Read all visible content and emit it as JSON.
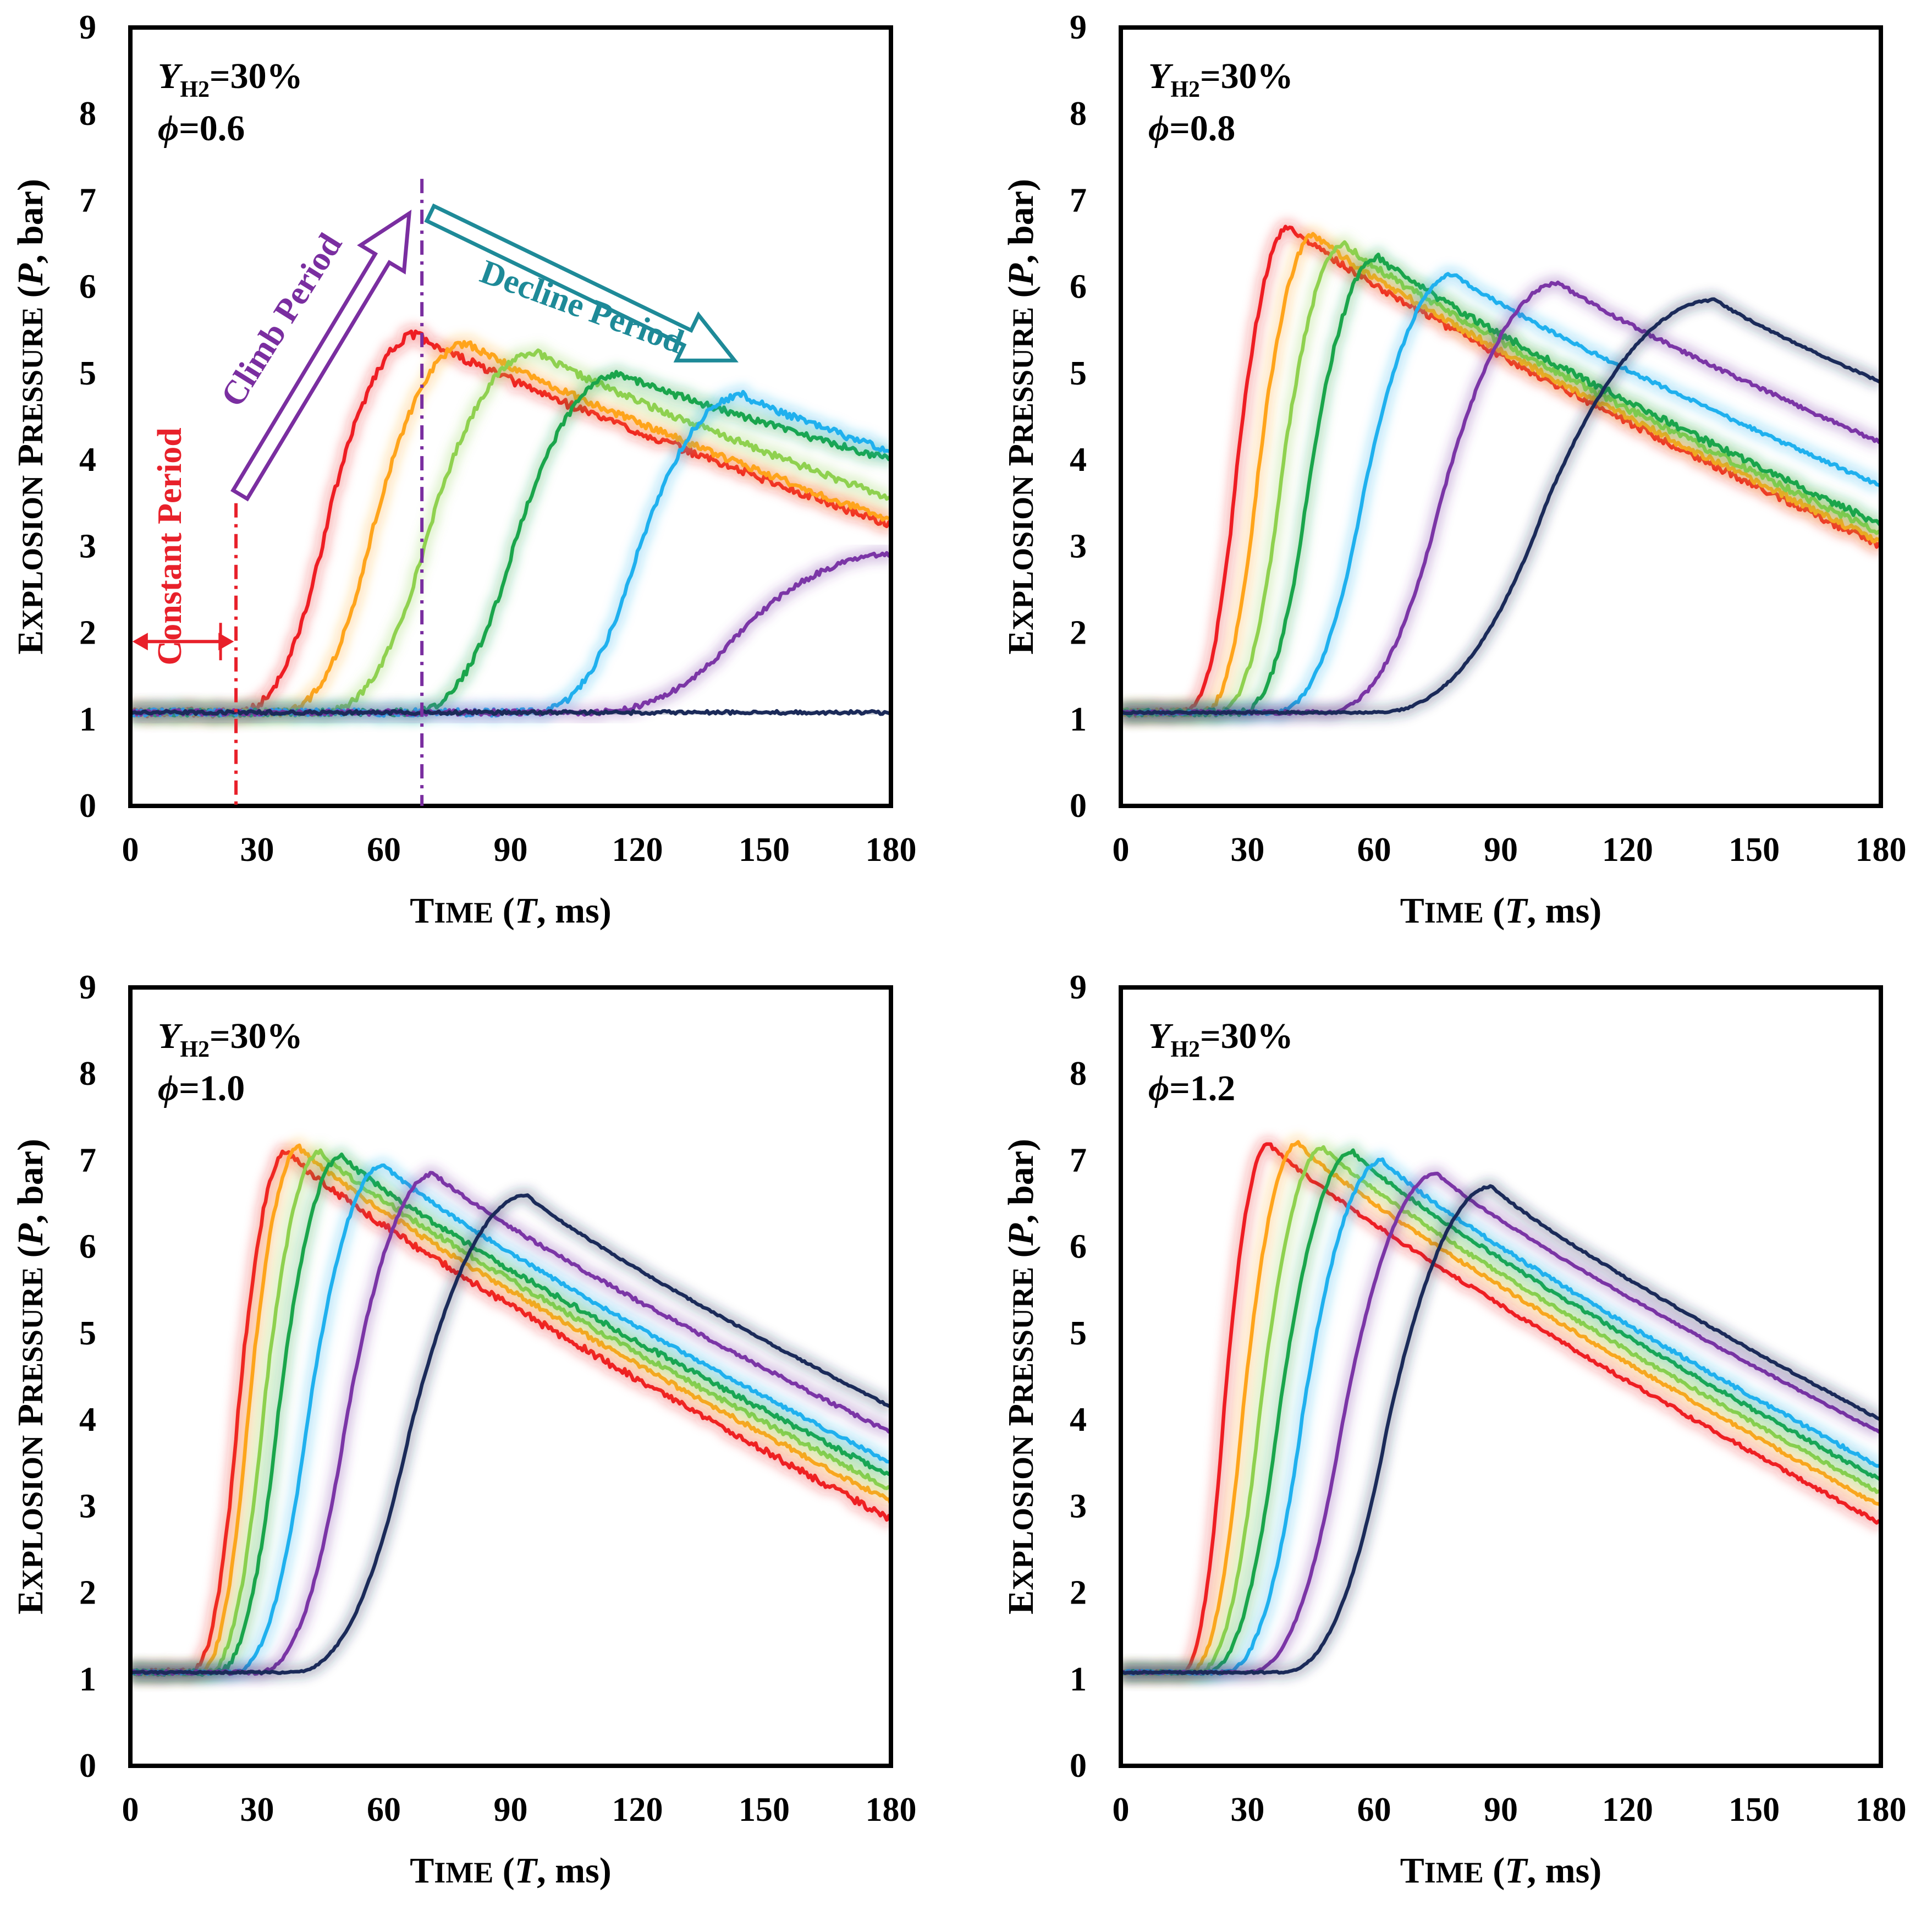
{
  "chart_data": [
    {
      "type": "line",
      "panel_label": "top-left",
      "annotation_y": "Y",
      "annotation_sub": "H2",
      "annotation_y_value": "=30%",
      "annotation_phi": "ϕ",
      "annotation_phi_value": "=0.6",
      "xlabel": "Time (t, ms)",
      "ylabel": "Explosion Pressure (P, bar)",
      "xlim": [
        0,
        180
      ],
      "ylim": [
        0,
        9
      ],
      "xticks": [
        0,
        30,
        60,
        90,
        120,
        150,
        180
      ],
      "yticks": [
        0,
        1,
        2,
        3,
        4,
        5,
        6,
        7,
        8,
        9
      ],
      "period_labels": {
        "constant": "Constant Period",
        "climb": "Climb Period",
        "decline": "Decline Period"
      },
      "period_colors": {
        "constant": "#e8202a",
        "climb": "#7a2ea0",
        "decline": "#1e8a98"
      },
      "marker_times": [
        25,
        69
      ],
      "series": [
        {
          "name": "s1",
          "color": "#ee1d23",
          "onset": 25,
          "peak_t": 68,
          "peak_p": 5.45,
          "end_p": 3.25,
          "noise": 0.05
        },
        {
          "name": "s2",
          "color": "#ffa41b",
          "onset": 35,
          "peak_t": 80,
          "peak_p": 5.35,
          "end_p": 3.3,
          "noise": 0.04
        },
        {
          "name": "s3",
          "color": "#8fd14f",
          "onset": 45,
          "peak_t": 96,
          "peak_p": 5.25,
          "end_p": 3.55,
          "noise": 0.04
        },
        {
          "name": "s4",
          "color": "#1aa54b",
          "onset": 66,
          "peak_t": 116,
          "peak_p": 5.0,
          "end_p": 4.0,
          "noise": 0.04
        },
        {
          "name": "s5",
          "color": "#1fb0ee",
          "onset": 95,
          "peak_t": 145,
          "peak_p": 4.75,
          "end_p": 4.1,
          "noise": 0.04
        },
        {
          "name": "s6",
          "color": "#7b35a6",
          "onset": 108,
          "peak_t": 180,
          "peak_p": 2.9,
          "end_p": 2.9,
          "noise": 0.03
        },
        {
          "name": "s7",
          "color": "#1b2a59",
          "onset": 180,
          "peak_t": 180,
          "peak_p": 1.2,
          "end_p": 1.2,
          "noise": 0.02
        }
      ]
    },
    {
      "type": "line",
      "panel_label": "top-right",
      "annotation_y": "Y",
      "annotation_sub": "H2",
      "annotation_y_value": "=30%",
      "annotation_phi": "ϕ",
      "annotation_phi_value": "=0.8",
      "xlabel": "Time (t, ms)",
      "ylabel": "Explosion Pressure (P, bar)",
      "xlim": [
        0,
        180
      ],
      "ylim": [
        0,
        9
      ],
      "xticks": [
        0,
        30,
        60,
        90,
        120,
        150,
        180
      ],
      "yticks": [
        0,
        1,
        2,
        3,
        4,
        5,
        6,
        7,
        8,
        9
      ],
      "series": [
        {
          "name": "s1",
          "color": "#ee1d23",
          "onset": 15,
          "peak_t": 40,
          "peak_p": 6.7,
          "end_p": 3.0,
          "noise": 0.04
        },
        {
          "name": "s2",
          "color": "#ffa41b",
          "onset": 19,
          "peak_t": 46,
          "peak_p": 6.6,
          "end_p": 3.05,
          "noise": 0.04
        },
        {
          "name": "s3",
          "color": "#8fd14f",
          "onset": 23,
          "peak_t": 53,
          "peak_p": 6.5,
          "end_p": 3.15,
          "noise": 0.04
        },
        {
          "name": "s4",
          "color": "#1aa54b",
          "onset": 28,
          "peak_t": 61,
          "peak_p": 6.35,
          "end_p": 3.25,
          "noise": 0.04
        },
        {
          "name": "s5",
          "color": "#1fb0ee",
          "onset": 36,
          "peak_t": 79,
          "peak_p": 6.15,
          "end_p": 3.7,
          "noise": 0.02
        },
        {
          "name": "s6",
          "color": "#7b35a6",
          "onset": 48,
          "peak_t": 104,
          "peak_p": 6.05,
          "end_p": 4.2,
          "noise": 0.02
        },
        {
          "name": "s7",
          "color": "#1b2a59",
          "onset": 60,
          "peak_t": 141,
          "peak_p": 5.85,
          "end_p": 4.9,
          "noise": 0.01
        }
      ]
    },
    {
      "type": "line",
      "panel_label": "bottom-left",
      "annotation_y": "Y",
      "annotation_sub": "H2",
      "annotation_y_value": "=30%",
      "annotation_phi": "ϕ",
      "annotation_phi_value": "=1.0",
      "xlabel": "Time (t, ms)",
      "ylabel": "Explosion Pressure (P, bar)",
      "xlim": [
        0,
        180
      ],
      "ylim": [
        0,
        9
      ],
      "xticks": [
        0,
        30,
        60,
        90,
        120,
        150,
        180
      ],
      "yticks": [
        0,
        1,
        2,
        3,
        4,
        5,
        6,
        7,
        8,
        9
      ],
      "series": [
        {
          "name": "s1",
          "color": "#ee1d23",
          "onset": 14,
          "peak_t": 37,
          "peak_p": 7.1,
          "end_p": 2.85,
          "noise": 0.04
        },
        {
          "name": "s2",
          "color": "#ffa41b",
          "onset": 16,
          "peak_t": 40,
          "peak_p": 7.15,
          "end_p": 3.05,
          "noise": 0.03
        },
        {
          "name": "s3",
          "color": "#8fd14f",
          "onset": 18,
          "peak_t": 45,
          "peak_p": 7.1,
          "end_p": 3.2,
          "noise": 0.03
        },
        {
          "name": "s4",
          "color": "#1aa54b",
          "onset": 20,
          "peak_t": 50,
          "peak_p": 7.05,
          "end_p": 3.35,
          "noise": 0.03
        },
        {
          "name": "s5",
          "color": "#1fb0ee",
          "onset": 24,
          "peak_t": 60,
          "peak_p": 6.95,
          "end_p": 3.5,
          "noise": 0.02
        },
        {
          "name": "s6",
          "color": "#7b35a6",
          "onset": 30,
          "peak_t": 72,
          "peak_p": 6.85,
          "end_p": 3.85,
          "noise": 0.02
        },
        {
          "name": "s7",
          "color": "#1b2a59",
          "onset": 38,
          "peak_t": 94,
          "peak_p": 6.6,
          "end_p": 4.15,
          "noise": 0.01
        }
      ]
    },
    {
      "type": "line",
      "panel_label": "bottom-right",
      "annotation_y": "Y",
      "annotation_sub": "H2",
      "annotation_y_value": "=30%",
      "annotation_phi": "ϕ",
      "annotation_phi_value": "=1.2",
      "xlabel": "Time (t, ms)",
      "ylabel": "Explosion Pressure (P, bar)",
      "xlim": [
        0,
        180
      ],
      "ylim": [
        0,
        9
      ],
      "xticks": [
        0,
        30,
        60,
        90,
        120,
        150,
        180
      ],
      "yticks": [
        0,
        1,
        2,
        3,
        4,
        5,
        6,
        7,
        8,
        9
      ],
      "series": [
        {
          "name": "s1",
          "color": "#ee1d23",
          "onset": 14,
          "peak_t": 35,
          "peak_p": 7.2,
          "end_p": 2.8,
          "noise": 0.02
        },
        {
          "name": "s2",
          "color": "#ffa41b",
          "onset": 16,
          "peak_t": 42,
          "peak_p": 7.2,
          "end_p": 3.0,
          "noise": 0.02
        },
        {
          "name": "s3",
          "color": "#8fd14f",
          "onset": 18,
          "peak_t": 48,
          "peak_p": 7.15,
          "end_p": 3.15,
          "noise": 0.02
        },
        {
          "name": "s4",
          "color": "#1aa54b",
          "onset": 20,
          "peak_t": 55,
          "peak_p": 7.1,
          "end_p": 3.3,
          "noise": 0.02
        },
        {
          "name": "s5",
          "color": "#1fb0ee",
          "onset": 24,
          "peak_t": 62,
          "peak_p": 7.0,
          "end_p": 3.45,
          "noise": 0.02
        },
        {
          "name": "s6",
          "color": "#7b35a6",
          "onset": 30,
          "peak_t": 75,
          "peak_p": 6.85,
          "end_p": 3.85,
          "noise": 0.01
        },
        {
          "name": "s7",
          "color": "#1b2a59",
          "onset": 38,
          "peak_t": 88,
          "peak_p": 6.7,
          "end_p": 4.0,
          "noise": 0.01
        }
      ]
    }
  ]
}
